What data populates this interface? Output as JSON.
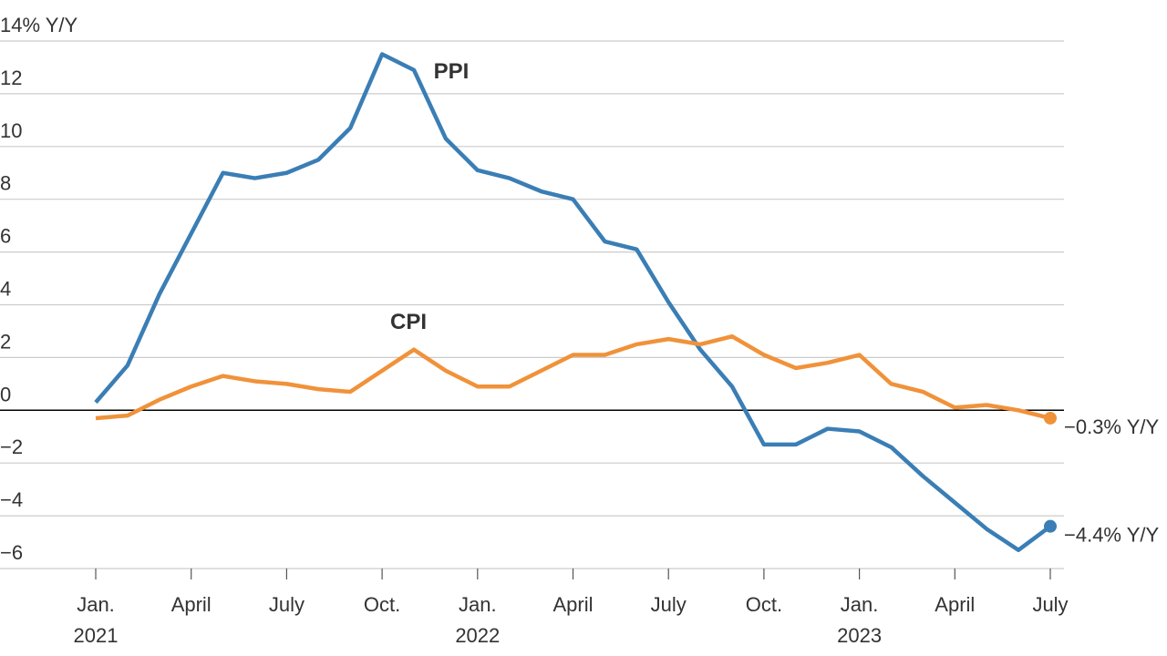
{
  "chart_data": {
    "type": "line",
    "categories": [
      "Jan. 2021",
      null,
      null,
      "April",
      null,
      null,
      "July",
      null,
      null,
      "Oct.",
      null,
      null,
      "Jan. 2022",
      null,
      null,
      "April",
      null,
      null,
      "July",
      null,
      null,
      "Oct.",
      null,
      null,
      "Jan. 2023",
      null,
      null,
      "April",
      null,
      null,
      "July"
    ],
    "series": [
      {
        "name": "PPI",
        "color": "#3a7eb5",
        "values": [
          0.3,
          1.7,
          4.4,
          6.7,
          9.0,
          8.8,
          9.0,
          9.5,
          10.7,
          13.5,
          12.9,
          10.3,
          9.1,
          8.8,
          8.3,
          8.0,
          6.4,
          6.1,
          4.1,
          2.3,
          0.9,
          -1.3,
          -1.3,
          -0.7,
          -0.8,
          -1.4,
          -2.5,
          -3.5,
          -4.5,
          -5.3,
          -4.4
        ],
        "value_labels": [
          null,
          null,
          null,
          null,
          null,
          null,
          null,
          null,
          null,
          null,
          null,
          null,
          null,
          null,
          null,
          null,
          null,
          null,
          null,
          null,
          null,
          null,
          null,
          null,
          null,
          null,
          null,
          null,
          null,
          null,
          "−4.4% Y/Y"
        ]
      },
      {
        "name": "CPI",
        "color": "#f0923a",
        "values": [
          -0.3,
          -0.2,
          0.4,
          0.9,
          1.3,
          1.1,
          1.0,
          0.8,
          0.7,
          1.5,
          2.3,
          1.5,
          0.9,
          0.9,
          1.5,
          2.1,
          2.1,
          2.5,
          2.7,
          2.5,
          2.8,
          2.1,
          1.6,
          1.8,
          2.1,
          1.0,
          0.7,
          0.1,
          0.2,
          0.0,
          -0.3
        ],
        "value_labels": [
          null,
          null,
          null,
          null,
          null,
          null,
          null,
          null,
          null,
          null,
          null,
          null,
          null,
          null,
          null,
          null,
          null,
          null,
          null,
          null,
          null,
          null,
          null,
          null,
          null,
          null,
          null,
          null,
          null,
          null,
          "−0.3% Y/Y"
        ]
      }
    ],
    "ylim": [
      -6,
      14
    ],
    "yticks": [
      {
        "value": -6,
        "label": "−6"
      },
      {
        "value": -4,
        "label": "−4"
      },
      {
        "value": -2,
        "label": "−2"
      },
      0,
      2,
      4,
      6,
      8,
      10,
      12,
      {
        "value": 14,
        "label": "14% Y/Y"
      }
    ],
    "grid": true
  }
}
